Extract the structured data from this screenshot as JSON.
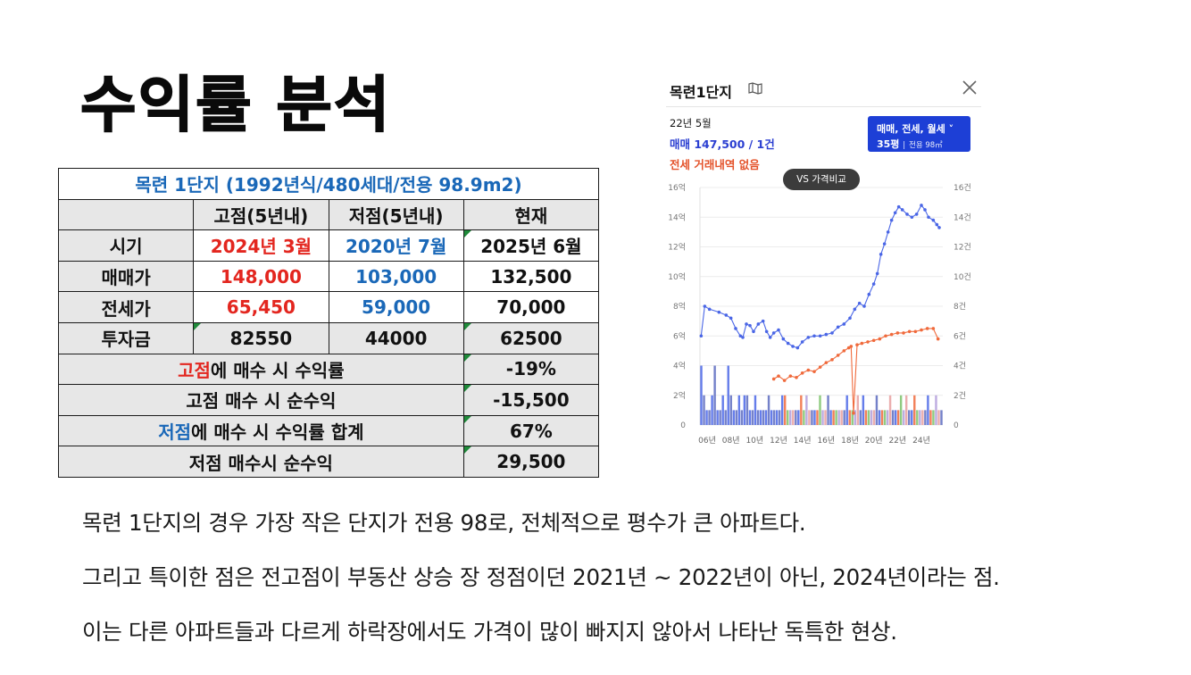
{
  "page_title": "수익률 분석",
  "table": {
    "title": "목련 1단지 (1992년식/480세대/전용 98.9m2)",
    "headers": [
      "",
      "고점(5년내)",
      "저점(5년내)",
      "현재"
    ],
    "rows": [
      {
        "label": "시기",
        "high": "2024년 3월",
        "low": "2020년 7월",
        "current": "2025년 6월"
      },
      {
        "label": "매매가",
        "high": "148,000",
        "low": "103,000",
        "current": "132,500"
      },
      {
        "label": "전세가",
        "high": "65,450",
        "low": "59,000",
        "current": "70,000"
      },
      {
        "label": "투자금",
        "high": "82550",
        "low": "44000",
        "current": "62500"
      }
    ],
    "summary": [
      {
        "label_highlight": "고점",
        "label_rest": "에 매수 시 수익률",
        "value": "-19%"
      },
      {
        "label_highlight": "",
        "label_rest": "고점 매수 시 순수익",
        "value": "-15,500"
      },
      {
        "label_highlight": "저점",
        "label_rest": "에 매수 시 수익률 합계",
        "value": "67%"
      },
      {
        "label_highlight": "",
        "label_rest": "저점 매수시 순수익",
        "value": "29,500"
      }
    ]
  },
  "panel": {
    "title": "목련1단지",
    "info_date": "22년 5월",
    "info_sale": "매매 147,500 / 1건",
    "info_jeonse": "전세 거래내역 없음",
    "filter_line1": "매매, 전세, 월세",
    "filter_pyeong": "35평",
    "filter_area": "전용 98㎡",
    "vs_button": "VS 가격비교",
    "colors": {
      "sale": "#4a66e6",
      "jeonse": "#f06a3c",
      "filter_bg": "#1d3fd6"
    }
  },
  "chart_data": {
    "type": "line",
    "x_tick_labels": [
      "06년",
      "08년",
      "10년",
      "12년",
      "14년",
      "16년",
      "18년",
      "20년",
      "22년",
      "24년"
    ],
    "y_left_tick_labels": [
      "0",
      "2억",
      "4억",
      "6억",
      "8억",
      "10억",
      "12억",
      "14억",
      "16억"
    ],
    "y_right_tick_labels": [
      "0",
      "2건",
      "4건",
      "6건",
      "8건",
      "10건",
      "12건",
      "14건",
      "16건"
    ],
    "xlim": [
      2005.4,
      2025.8
    ],
    "ylim": [
      0,
      16
    ],
    "y_right_lim": [
      0,
      16
    ],
    "grid": true,
    "series": [
      {
        "color": "#4a66e6",
        "x": [
          2005.5,
          2005.8,
          2006.2,
          2007.0,
          2007.6,
          2008.0,
          2008.4,
          2008.8,
          2009.0,
          2009.3,
          2009.6,
          2009.9,
          2010.3,
          2010.7,
          2011.0,
          2011.3,
          2011.6,
          2012.0,
          2012.4,
          2012.8,
          2013.2,
          2013.6,
          2014.0,
          2014.5,
          2015.0,
          2015.5,
          2016.0,
          2016.5,
          2017.0,
          2017.5,
          2018.0,
          2018.4,
          2018.8,
          2019.2,
          2019.6,
          2020.0,
          2020.3,
          2020.6,
          2020.9,
          2021.2,
          2021.5,
          2021.8,
          2022.1,
          2022.4,
          2022.8,
          2023.2,
          2023.6,
          2024.0,
          2024.3,
          2024.6,
          2025.0,
          2025.3,
          2025.5
        ],
        "y": [
          6.0,
          8.0,
          7.8,
          7.6,
          7.4,
          7.2,
          6.5,
          6.0,
          5.9,
          6.8,
          6.7,
          6.3,
          6.8,
          7.0,
          6.3,
          5.9,
          6.2,
          6.4,
          5.8,
          5.5,
          5.3,
          5.2,
          5.6,
          5.9,
          6.0,
          6.0,
          6.1,
          6.2,
          6.6,
          6.8,
          7.2,
          7.8,
          8.2,
          8.0,
          8.8,
          9.5,
          10.2,
          11.5,
          12.2,
          13.0,
          13.8,
          14.3,
          14.7,
          14.5,
          14.2,
          14.0,
          14.2,
          14.8,
          14.5,
          14.0,
          13.8,
          13.5,
          13.3
        ]
      },
      {
        "color": "#f06a3c",
        "x": [
          2011.6,
          2012.0,
          2012.5,
          2013.0,
          2013.5,
          2014.0,
          2014.5,
          2015.0,
          2015.5,
          2016.0,
          2016.5,
          2017.0,
          2017.5,
          2017.9,
          2018.1,
          2018.3,
          2018.6,
          2019.0,
          2019.5,
          2020.0,
          2020.5,
          2021.0,
          2021.5,
          2022.0,
          2022.5,
          2023.0,
          2023.5,
          2024.0,
          2024.5,
          2025.0,
          2025.4
        ],
        "y": [
          3.1,
          3.3,
          3.0,
          3.3,
          3.2,
          3.5,
          3.7,
          3.6,
          3.9,
          4.2,
          4.4,
          4.7,
          5.0,
          5.2,
          5.3,
          0.8,
          5.4,
          5.5,
          5.6,
          5.7,
          5.8,
          6.0,
          6.1,
          6.2,
          6.2,
          6.3,
          6.3,
          6.4,
          6.5,
          6.5,
          5.8
        ]
      }
    ],
    "volume_bars": [
      4,
      2,
      1,
      1,
      2,
      4,
      1,
      1,
      2,
      1,
      4,
      2,
      1,
      1,
      2,
      1,
      2,
      2,
      1,
      1,
      2,
      1,
      1,
      1,
      1,
      2,
      1,
      1,
      1,
      1,
      2,
      2,
      1,
      1,
      1,
      1,
      1,
      2,
      1,
      2,
      1,
      1,
      1,
      1,
      2,
      1,
      1,
      2,
      1,
      1,
      1,
      1,
      1,
      1,
      2,
      1,
      1,
      1,
      2,
      1,
      2,
      1,
      1,
      1,
      1,
      2,
      1,
      1,
      1,
      1,
      2,
      1,
      1,
      1,
      2,
      1,
      2,
      1,
      1,
      2,
      1,
      1,
      1,
      1,
      2,
      1,
      1,
      2,
      1,
      1
    ]
  },
  "descriptions": [
    "목련 1단지의 경우 가장 작은 단지가 전용 98로, 전체적으로 평수가 큰 아파트다.",
    "그리고 특이한 점은 전고점이 부동산 상승 장 정점이던 2021년 ~ 2022년이 아닌, 2024년이라는 점.",
    "이는 다른 아파트들과 다르게 하락장에서도 가격이 많이 빠지지 않아서 나타난 독특한 현상."
  ]
}
